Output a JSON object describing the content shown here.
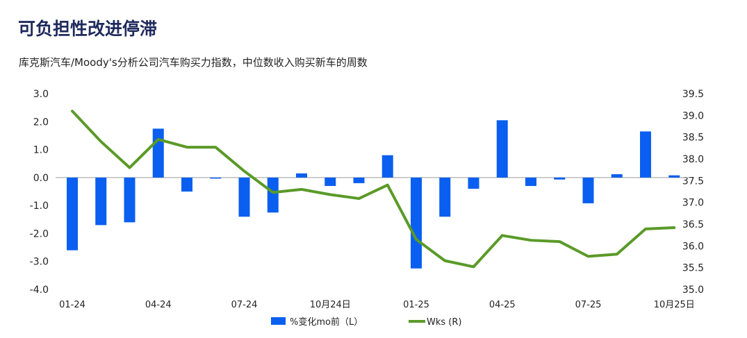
{
  "title": "可负担性改进停滞",
  "subtitle": "库克斯汽车/Moody's分析公司汽车购买力指数，中位数收入购买新车的周数",
  "colors": {
    "bars": "#0a5ff0",
    "line": "#5a9a28",
    "title": "#1f2a5c"
  },
  "chart_data": {
    "type": "bar",
    "title": "可负担性改进停滞",
    "subtitle": "库克斯汽车/Moody's分析公司汽车购买力指数，中位数收入购买新车的周数",
    "x": [
      "2024-01",
      "2024-02",
      "2024-03",
      "2024-04",
      "2024-05",
      "2024-06",
      "2024-07",
      "2024-08",
      "2024-09",
      "2024-10",
      "2024-11",
      "2024-12",
      "2025-01",
      "2025-02",
      "2025-03",
      "2025-04",
      "2025-05",
      "2025-06",
      "2025-07",
      "2025-08",
      "2025-09",
      "2025-10"
    ],
    "x_tick_labels": [
      "01-24",
      "04-24",
      "07-24",
      "10月24日",
      "01-25",
      "04-25",
      "07-25",
      "10月25日"
    ],
    "x_tick_index": [
      0,
      3,
      6,
      9,
      12,
      15,
      18,
      21
    ],
    "y_left": {
      "ticks": [
        "3.0",
        "2.0",
        "1.0",
        "0.0",
        "-1.0",
        "-2.0",
        "-3.0",
        "-4.0"
      ],
      "range": [
        -4,
        3
      ]
    },
    "y_right": {
      "ticks": [
        "39.5",
        "39.0",
        "38.5",
        "38.0",
        "37.5",
        "37.0",
        "36.5",
        "36.0",
        "35.5",
        "35.0"
      ],
      "range": [
        35.0,
        39.5
      ]
    },
    "series": [
      {
        "name": "%变化mo前（L）",
        "type": "bar",
        "axis": "left",
        "values": [
          -2.6,
          -1.7,
          -1.6,
          1.75,
          -0.5,
          0.0,
          -1.4,
          -1.25,
          0.15,
          -0.3,
          -0.2,
          0.8,
          -3.25,
          -1.4,
          -0.4,
          2.05,
          -0.3,
          -0.07,
          -0.92,
          0.12,
          1.65,
          0.08
        ]
      },
      {
        "name": "Wks (R)",
        "type": "line",
        "axis": "right",
        "values": [
          39.1,
          38.4,
          37.8,
          38.45,
          38.27,
          38.27,
          37.72,
          37.23,
          37.3,
          37.18,
          37.09,
          37.4,
          36.15,
          35.66,
          35.52,
          36.24,
          36.13,
          36.1,
          35.76,
          35.81,
          36.39,
          36.42
        ]
      }
    ],
    "legend": {
      "position": "bottom-center",
      "labels": [
        "%变化mo前（L）",
        "Wks (R)"
      ]
    },
    "grid": false
  }
}
